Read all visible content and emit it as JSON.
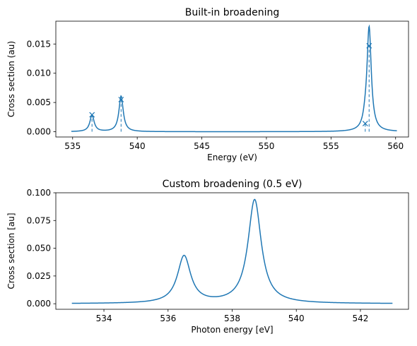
{
  "colors": {
    "line": "#1f77b4",
    "axes": "#000000",
    "background": "#ffffff"
  },
  "chart_data": [
    {
      "type": "line",
      "title": "Built-in broadening",
      "xlabel": "Energy (eV)",
      "ylabel": "Cross section (au)",
      "xlim": [
        533.7,
        561.0
      ],
      "ylim": [
        -0.0009,
        0.0189
      ],
      "xticks": [
        535,
        540,
        545,
        550,
        555,
        560
      ],
      "xtick_labels": [
        "535",
        "540",
        "545",
        "550",
        "555",
        "560"
      ],
      "yticks": [
        0,
        0.005,
        0.01,
        0.015
      ],
      "ytick_labels": [
        "0.000",
        "0.005",
        "0.010",
        "0.015"
      ],
      "grid": false,
      "curve": {
        "x_range": [
          534.9,
          560.1
        ],
        "lorentzian_fwhm": 0.4,
        "peaks": [
          {
            "center": 536.5,
            "height": 0.0028
          },
          {
            "center": 538.75,
            "height": 0.0061
          },
          {
            "center": 557.65,
            "height": 0.0011
          },
          {
            "center": 557.95,
            "height": 0.0177
          }
        ]
      },
      "sticks": [
        {
          "x": 536.5,
          "y": 0.0029
        },
        {
          "x": 538.75,
          "y": 0.0055
        },
        {
          "x": 557.65,
          "y": 0.0014
        },
        {
          "x": 557.95,
          "y": 0.0147
        }
      ]
    },
    {
      "type": "line",
      "title": "Custom broadening (0.5 eV)",
      "xlabel": "Photon energy [eV]",
      "ylabel": "Cross section [au]",
      "xlim": [
        532.5,
        543.5
      ],
      "ylim": [
        -0.005,
        0.1
      ],
      "xticks": [
        534,
        536,
        538,
        540,
        542
      ],
      "xtick_labels": [
        "534",
        "536",
        "538",
        "540",
        "542"
      ],
      "yticks": [
        0,
        0.025,
        0.05,
        0.075,
        0.1
      ],
      "ytick_labels": [
        "0.000",
        "0.025",
        "0.050",
        "0.075",
        "0.100"
      ],
      "grid": false,
      "curve": {
        "x_range": [
          533.0,
          543.0
        ],
        "lorentzian_fwhm": 0.5,
        "peaks": [
          {
            "center": 536.5,
            "height": 0.0425
          },
          {
            "center": 538.7,
            "height": 0.0935
          }
        ]
      }
    }
  ]
}
